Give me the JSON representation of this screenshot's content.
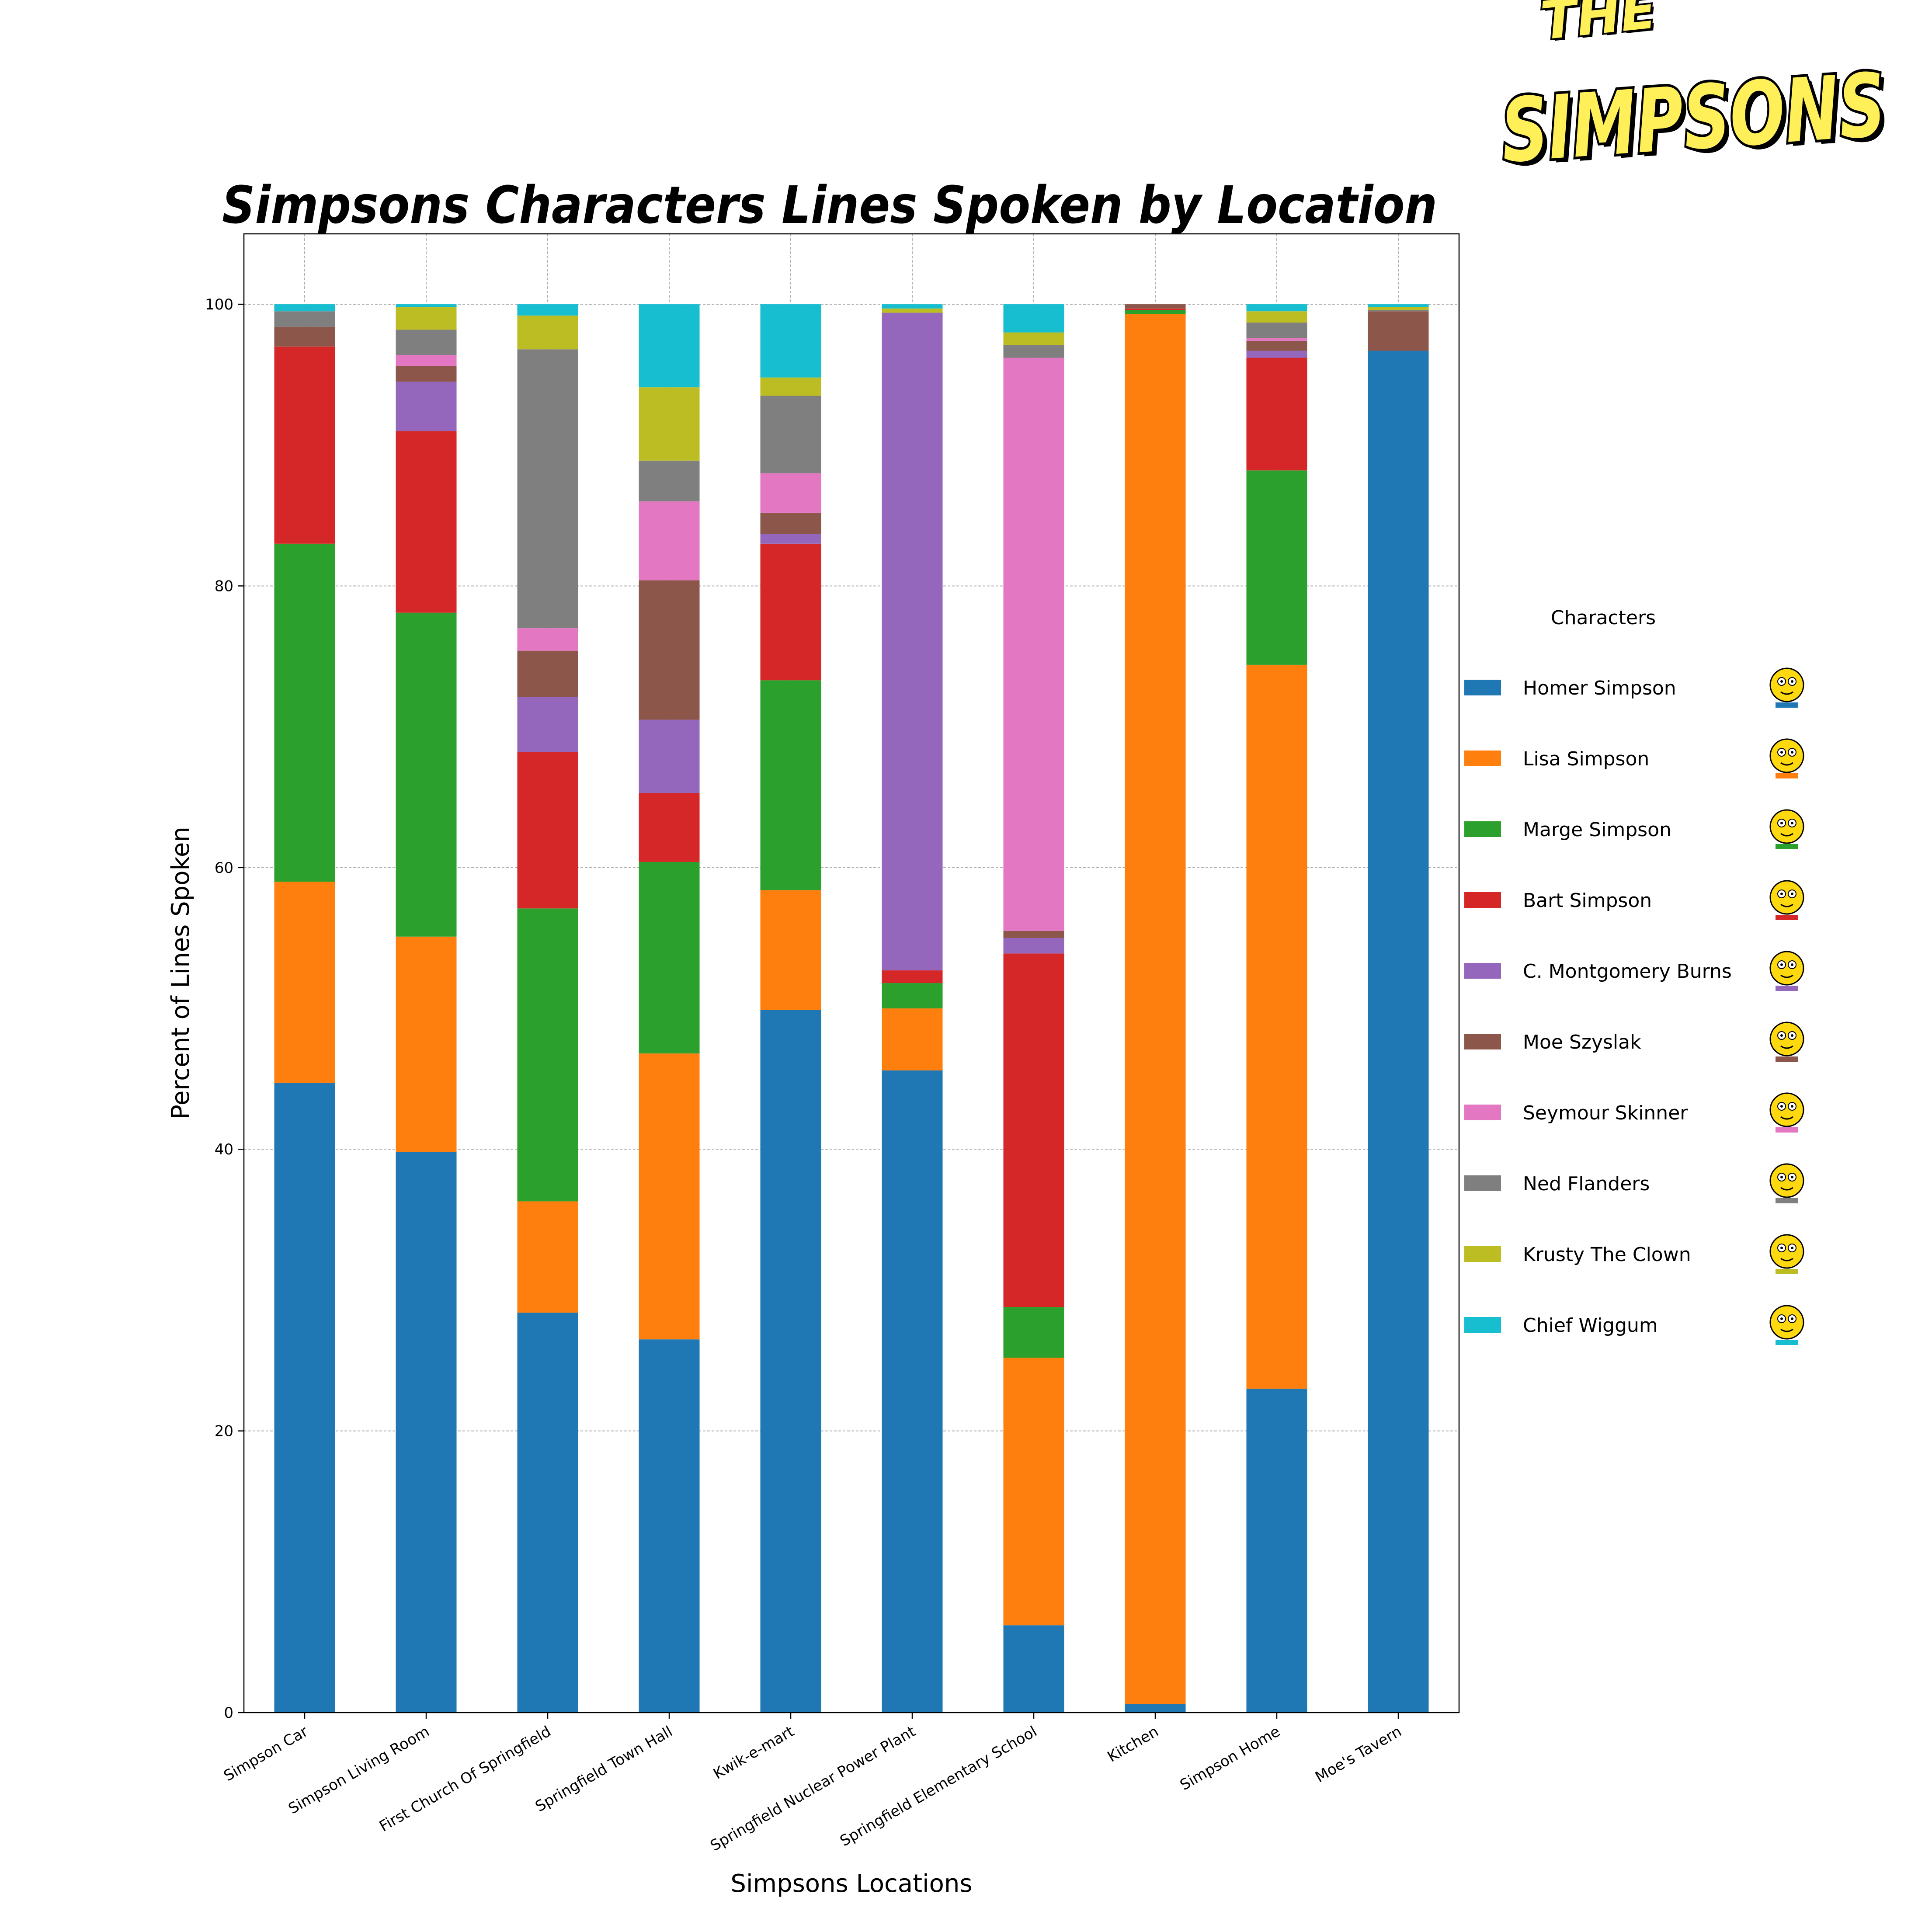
{
  "logo": {
    "line1": "THE",
    "line2": "SIMPSONS"
  },
  "chart_data": {
    "type": "bar",
    "stacked": true,
    "title": "Simpsons Characters Lines Spoken by Location",
    "xlabel": "Simpsons Locations",
    "ylabel": "Percent of Lines Spoken",
    "ylim": [
      0,
      105
    ],
    "yticks": [
      0,
      20,
      40,
      60,
      80,
      100
    ],
    "grid": true,
    "legend_title": "Characters",
    "legend_position": "right",
    "categories": [
      "Simpson Car",
      "Simpson Living Room",
      "First Church Of Springfield",
      "Springfield Town Hall",
      "Kwik-e-mart",
      "Springfield Nuclear Power Plant",
      "Springfield Elementary School",
      "Kitchen",
      "Simpson Home",
      "Moe's Tavern"
    ],
    "series": [
      {
        "name": "Homer Simpson",
        "color": "#1f77b4",
        "icon": "homer-simpson-icon",
        "values": [
          44.7,
          39.8,
          28.4,
          26.5,
          49.9,
          45.6,
          6.2,
          0.6,
          23.0,
          96.7
        ]
      },
      {
        "name": "Lisa Simpson",
        "color": "#ff7f0e",
        "icon": "lisa-simpson-icon",
        "values": [
          14.3,
          15.3,
          7.9,
          20.3,
          8.5,
          4.4,
          19.0,
          98.7,
          51.4,
          0.0
        ]
      },
      {
        "name": "Marge Simpson",
        "color": "#2ca02c",
        "icon": "marge-simpson-icon",
        "values": [
          24.0,
          23.0,
          20.8,
          13.6,
          14.9,
          1.8,
          3.6,
          0.3,
          13.8,
          0.0
        ]
      },
      {
        "name": "Bart Simpson",
        "color": "#d62728",
        "icon": "bart-simpson-icon",
        "values": [
          14.0,
          12.9,
          11.1,
          4.9,
          9.7,
          0.9,
          25.1,
          0.1,
          8.0,
          0.0
        ]
      },
      {
        "name": "C. Montgomery Burns",
        "color": "#9467bd",
        "icon": "mr-burns-icon",
        "values": [
          0.0,
          3.5,
          3.9,
          5.2,
          0.7,
          46.7,
          1.1,
          0.0,
          0.5,
          0.0
        ]
      },
      {
        "name": "Moe Szyslak",
        "color": "#8c564b",
        "icon": "moe-szyslak-icon",
        "values": [
          1.4,
          1.1,
          3.3,
          9.9,
          1.5,
          0.0,
          0.5,
          0.3,
          0.7,
          2.8
        ]
      },
      {
        "name": "Seymour Skinner",
        "color": "#e377c2",
        "icon": "seymour-skinner-icon",
        "values": [
          0.0,
          0.8,
          1.6,
          5.6,
          2.8,
          0.0,
          40.7,
          0.0,
          0.2,
          0.0
        ]
      },
      {
        "name": "Ned Flanders",
        "color": "#7f7f7f",
        "icon": "ned-flanders-icon",
        "values": [
          1.1,
          1.8,
          19.8,
          2.9,
          5.5,
          0.0,
          0.9,
          0.0,
          1.1,
          0.1
        ]
      },
      {
        "name": "Krusty The Clown",
        "color": "#bcbd22",
        "icon": "krusty-the-clown-icon",
        "values": [
          0.0,
          1.6,
          2.4,
          5.2,
          1.3,
          0.3,
          0.9,
          0.0,
          0.8,
          0.2
        ]
      },
      {
        "name": "Chief Wiggum",
        "color": "#17becf",
        "icon": "chief-wiggum-icon",
        "values": [
          0.5,
          0.2,
          0.8,
          5.9,
          5.2,
          0.3,
          2.0,
          0.0,
          0.5,
          0.2
        ]
      }
    ]
  }
}
